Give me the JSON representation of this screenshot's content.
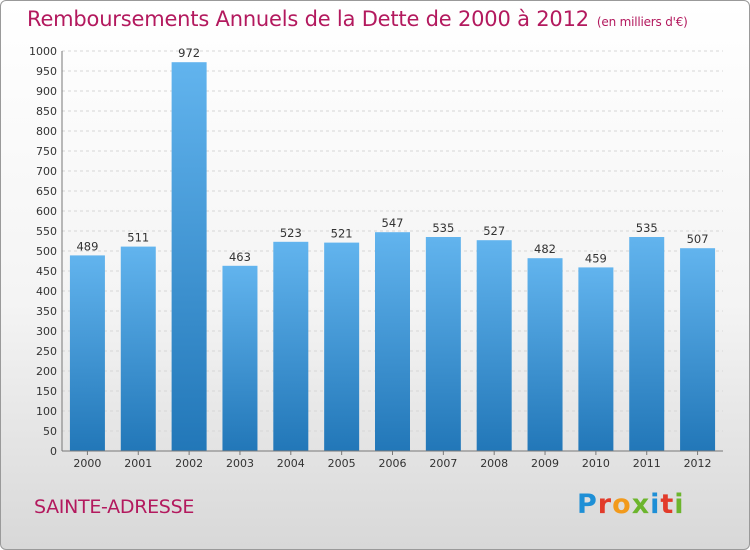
{
  "title": "Remboursements Annuels de la Dette de 2000 à 2012",
  "unit_note": "(en milliers d'€)",
  "commune": "SAINTE-ADRESSE",
  "logo": {
    "letters": [
      "P",
      "r",
      "o",
      "x",
      "i",
      "t",
      "i"
    ],
    "colors": [
      "#1e8fd6",
      "#e23b2a",
      "#f29a1c",
      "#6cb52d",
      "#1e8fd6",
      "#e23b2a",
      "#6cb52d"
    ]
  },
  "colors": {
    "bar_top": "#62b4ee",
    "bar_bottom": "#2277b8",
    "title": "#b3195e"
  },
  "chart_data": {
    "type": "bar",
    "categories": [
      "2000",
      "2001",
      "2002",
      "2003",
      "2004",
      "2005",
      "2006",
      "2007",
      "2008",
      "2009",
      "2010",
      "2011",
      "2012"
    ],
    "values": [
      489,
      511,
      972,
      463,
      523,
      521,
      547,
      535,
      527,
      482,
      459,
      535,
      507
    ],
    "ylim": [
      0,
      1000
    ],
    "ytick_step": 50,
    "grid": true,
    "legend": "none"
  }
}
